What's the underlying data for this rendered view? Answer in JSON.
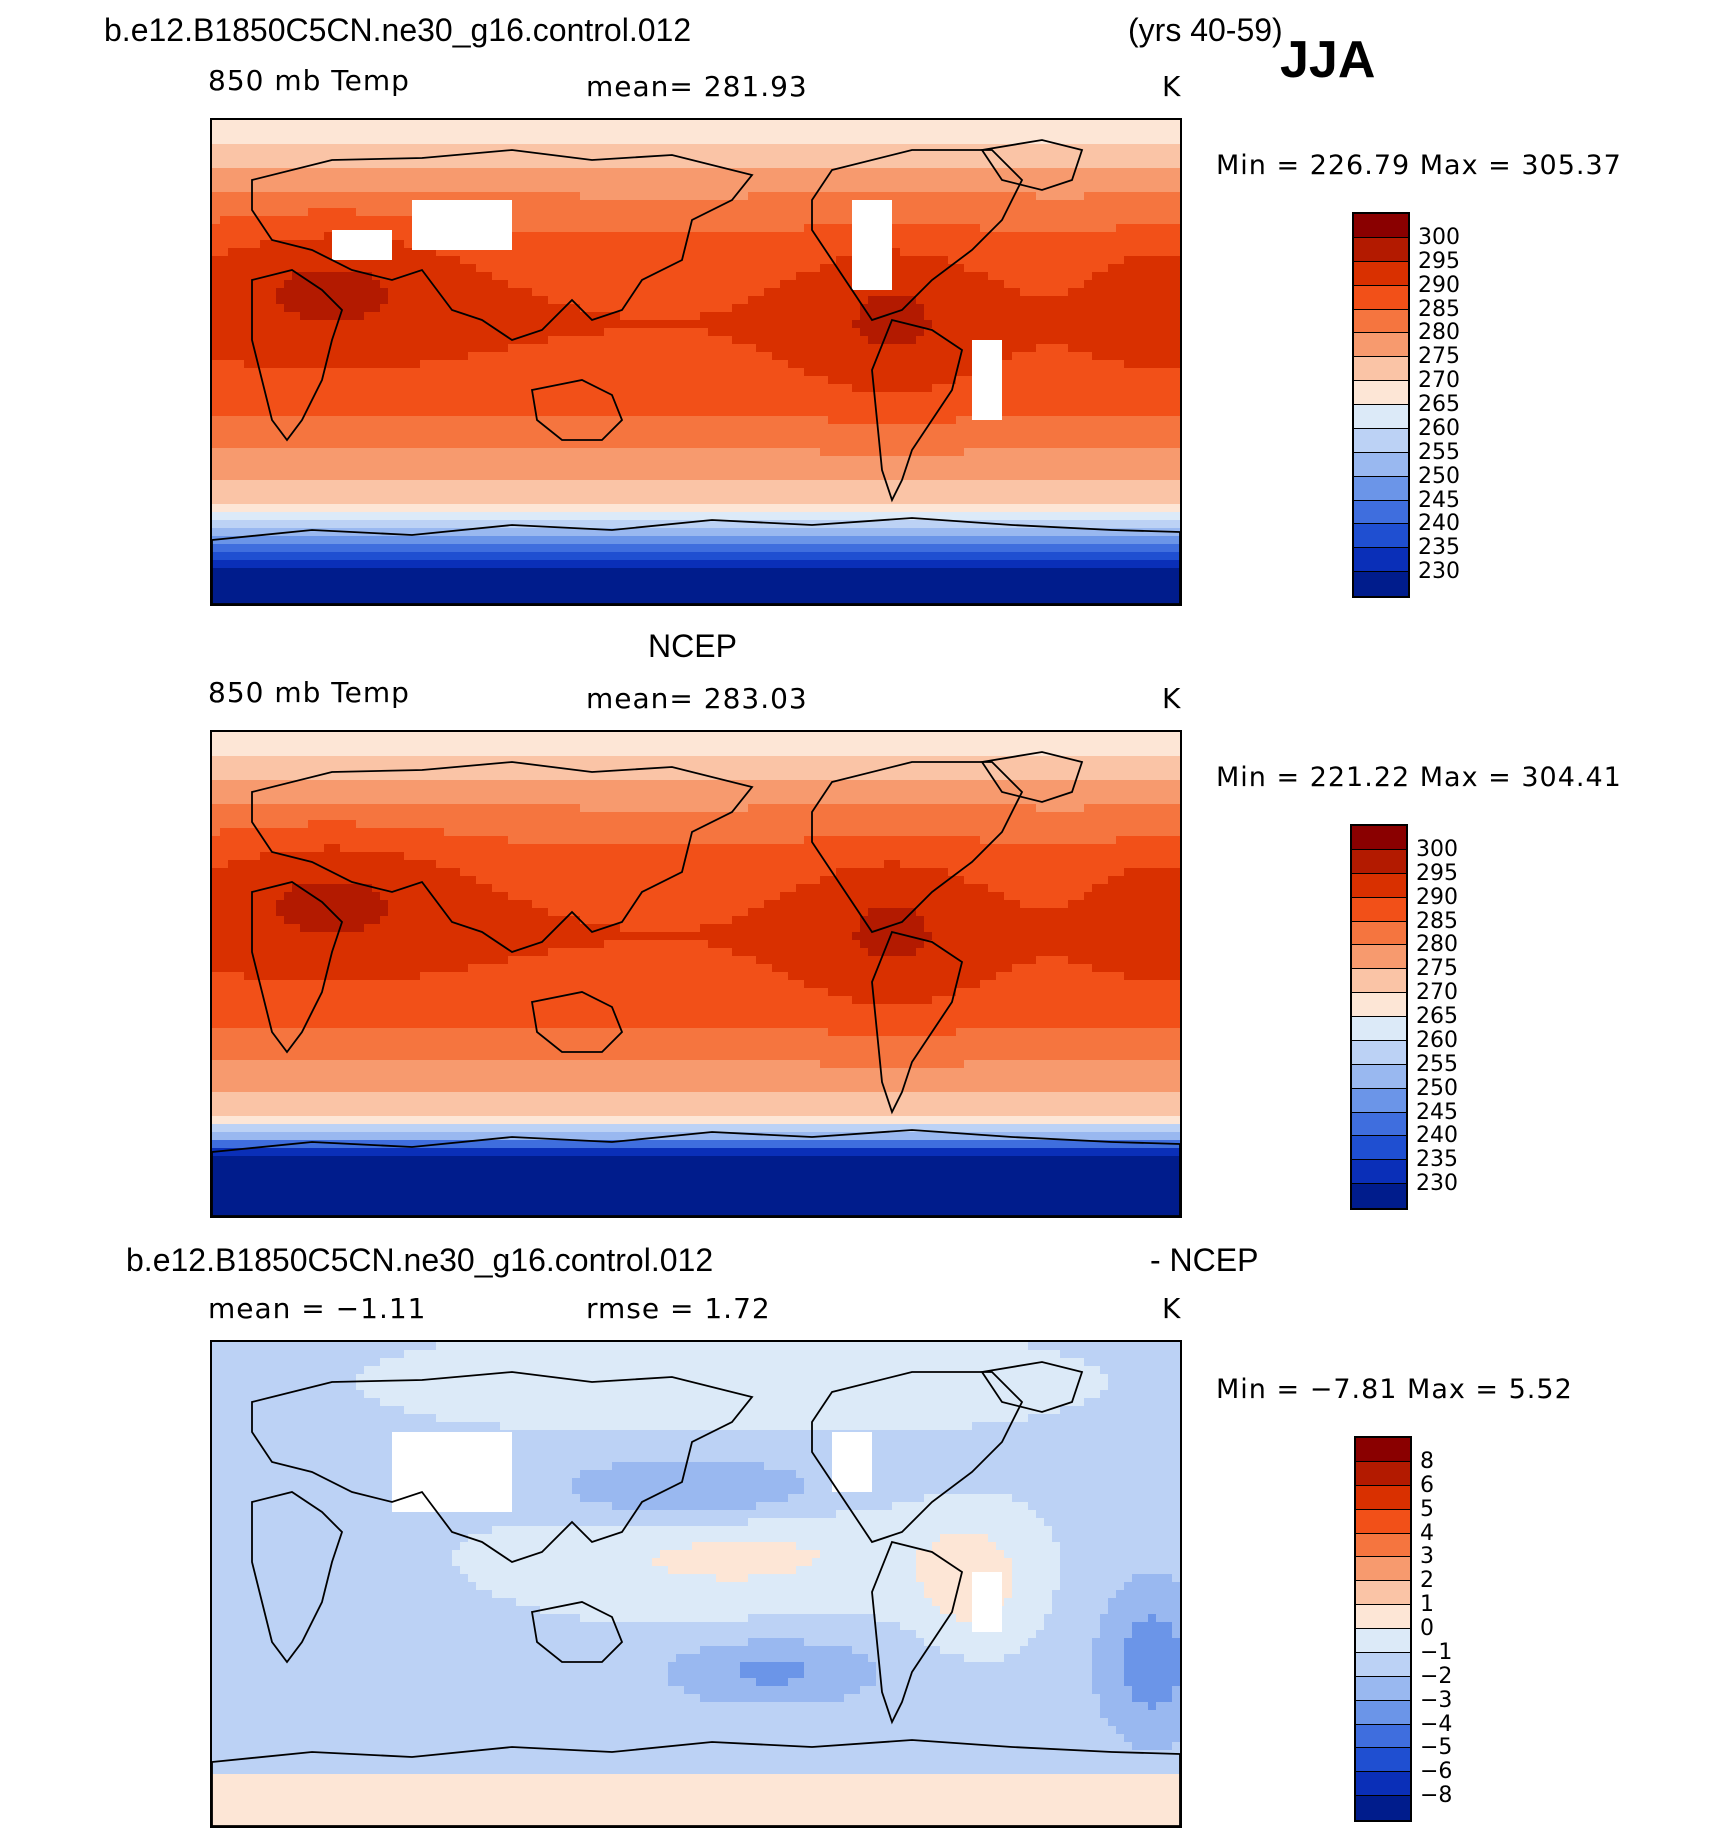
{
  "header": {
    "case_name": "b.e12.B1850C5CN.ne30_g16.control.012",
    "years": "(yrs 40-59)",
    "season": "JJA"
  },
  "panels": [
    {
      "title": "",
      "left_label": "850 mb Temp",
      "center_label": "mean=  281.93",
      "right_label": "K",
      "minmax": "Min  =  226.79  Max  =  305.37",
      "colorbar": {
        "labels": [
          "300",
          "295",
          "290",
          "285",
          "280",
          "275",
          "270",
          "265",
          "260",
          "255",
          "250",
          "245",
          "240",
          "235",
          "230"
        ],
        "colors": [
          "#8a0000",
          "#b31a00",
          "#d93000",
          "#f25018",
          "#f5753f",
          "#f79a6e",
          "#fac4a6",
          "#fde6d6",
          "#dceaf8",
          "#bcd2f5",
          "#99b8f0",
          "#6b95e8",
          "#3f6ede",
          "#1f4fd1",
          "#0a2fb8",
          "#001c8c"
        ]
      },
      "description": "model"
    },
    {
      "title": "NCEP",
      "left_label": "850 mb Temp",
      "center_label": "mean=  283.03",
      "right_label": "K",
      "minmax": "Min  =  221.22  Max  =  304.41",
      "colorbar": {
        "labels": [
          "300",
          "295",
          "290",
          "285",
          "280",
          "275",
          "270",
          "265",
          "260",
          "255",
          "250",
          "245",
          "240",
          "235",
          "230"
        ],
        "colors": [
          "#8a0000",
          "#b31a00",
          "#d93000",
          "#f25018",
          "#f5753f",
          "#f79a6e",
          "#fac4a6",
          "#fde6d6",
          "#dceaf8",
          "#bcd2f5",
          "#99b8f0",
          "#6b95e8",
          "#3f6ede",
          "#1f4fd1",
          "#0a2fb8",
          "#001c8c"
        ]
      },
      "description": "obs"
    },
    {
      "title": "b.e12.B1850C5CN.ne30_g16.control.012",
      "title_right": "- NCEP",
      "left_label": "mean =   −1.11",
      "center_label": "rmse =     1.72",
      "right_label": "K",
      "minmax": "Min  =   −7.81  Max  =     5.52",
      "colorbar": {
        "labels": [
          "8",
          "6",
          "5",
          "4",
          "3",
          "2",
          "1",
          "0",
          "−1",
          "−2",
          "−3",
          "−4",
          "−5",
          "−6",
          "−8"
        ],
        "colors": [
          "#8a0000",
          "#b31a00",
          "#d93000",
          "#f25018",
          "#f5753f",
          "#f79a6e",
          "#fac4a6",
          "#fde6d6",
          "#dceaf8",
          "#bcd2f5",
          "#99b8f0",
          "#6b95e8",
          "#3f6ede",
          "#1f4fd1",
          "#0a2fb8",
          "#001c8c"
        ]
      },
      "description": "diff"
    }
  ]
}
